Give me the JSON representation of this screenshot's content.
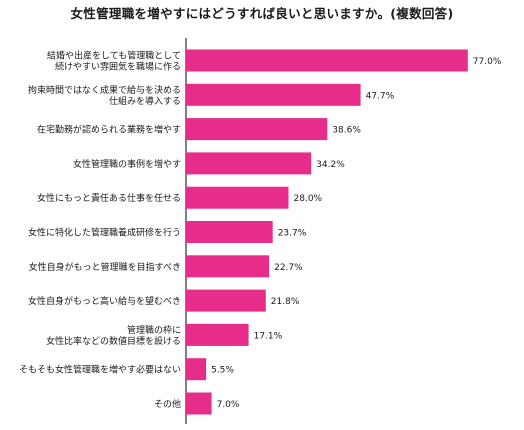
{
  "chart_data": {
    "type": "bar",
    "orientation": "horizontal",
    "title": "女性管理職を増やすにはどうすれば良いと思いますか。(複数回答)",
    "unit": "%",
    "bar_color": "#e62d8a",
    "categories": [
      "結婚や出産をしても管理職として\n続けやすい雰囲気を職場に作る",
      "拘束時間ではなく成果で給与を決める\n仕組みを導入する",
      "在宅勤務が認められる業務を増やす",
      "女性管理職の事例を増やす",
      "女性にもっと責任ある仕事を任せる",
      "女性に特化した管理職養成研修を行う",
      "女性自身がもっと管理職を目指すべき",
      "女性自身がもっと高い給与を望むべき",
      "管理職の枠に\n女性比率などの数値目標を設ける",
      "そもそも女性管理職を増やす必要はない",
      "その他"
    ],
    "values": [
      77.0,
      47.7,
      38.6,
      34.2,
      28.0,
      23.7,
      22.7,
      21.8,
      17.1,
      5.5,
      7.0
    ],
    "value_labels": [
      "77.0%",
      "47.7%",
      "38.6%",
      "34.2%",
      "28.0%",
      "23.7%",
      "22.7%",
      "21.8%",
      "17.1%",
      "5.5%",
      "7.0%"
    ],
    "xlim": [
      0,
      100
    ],
    "grid": false,
    "legend": "none"
  }
}
